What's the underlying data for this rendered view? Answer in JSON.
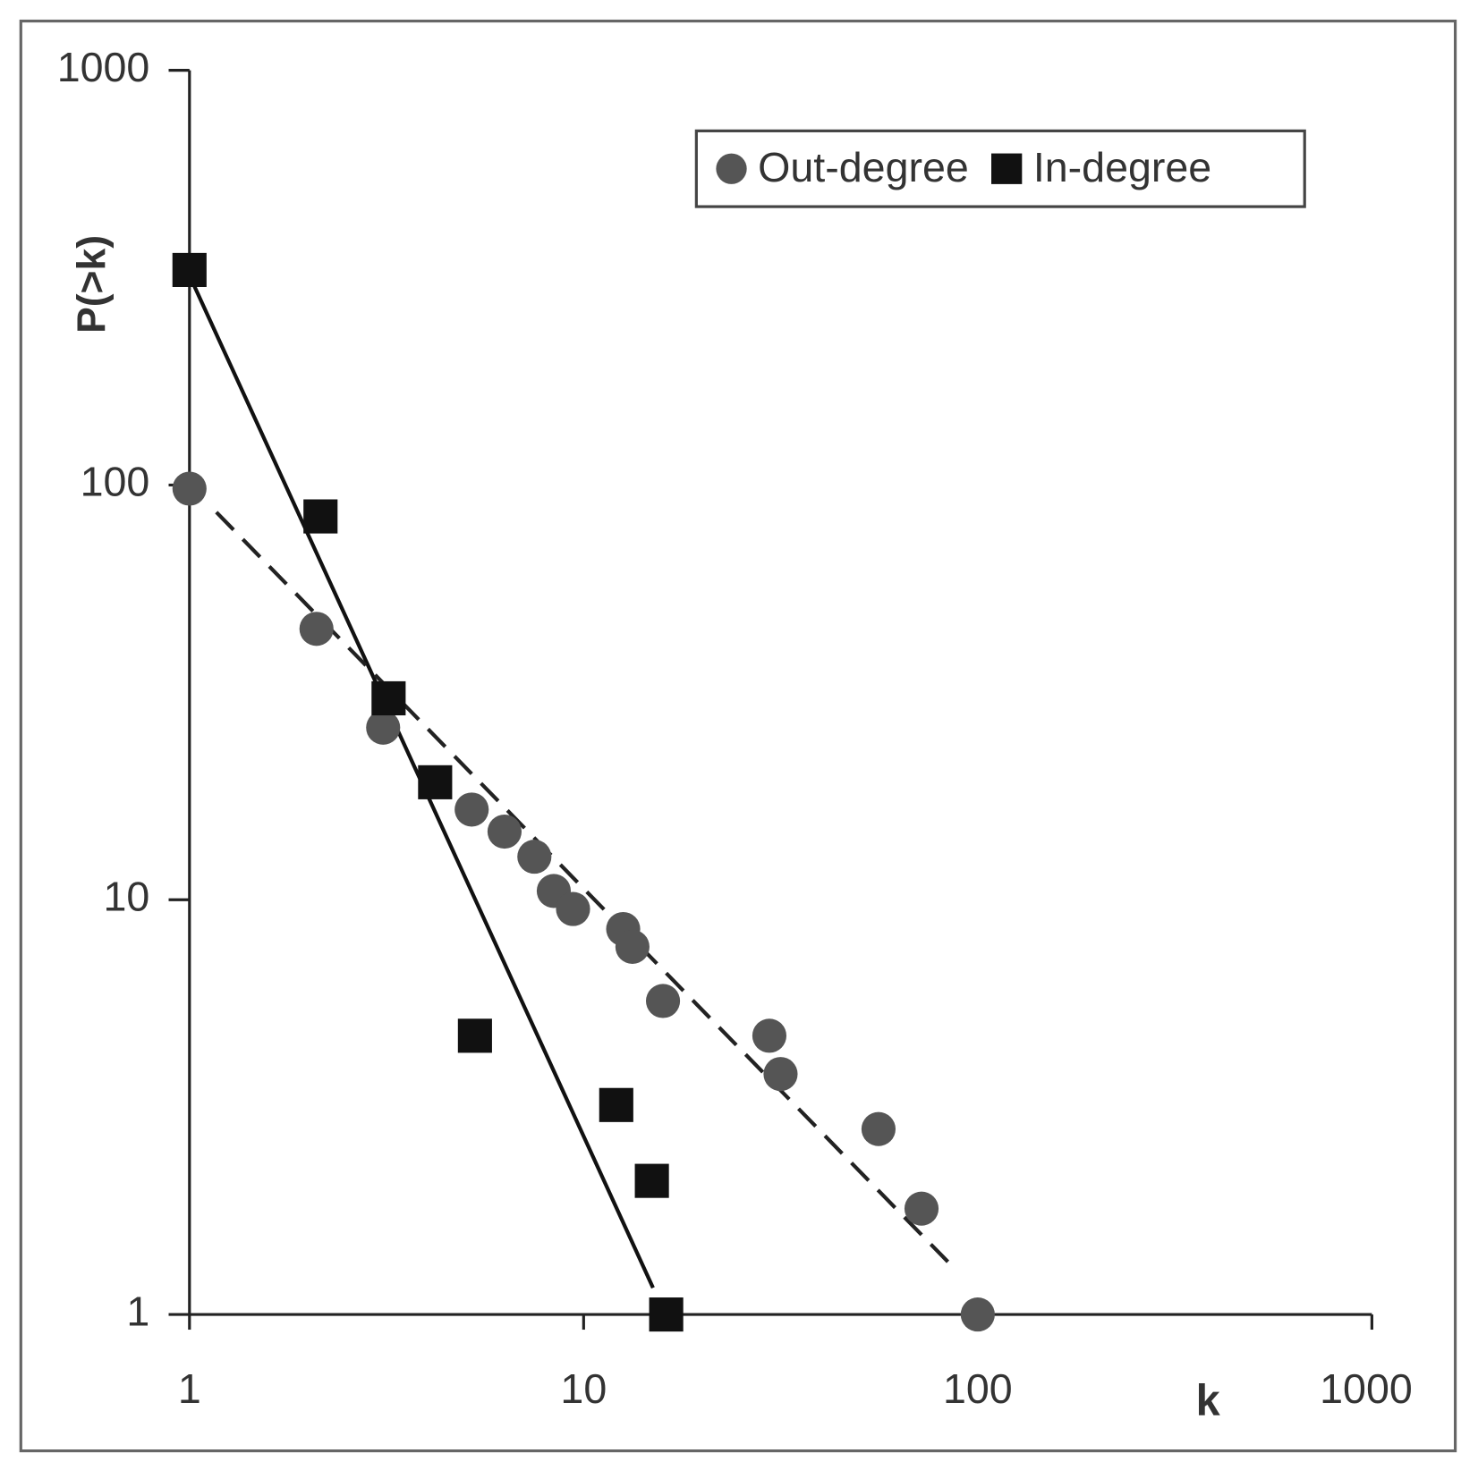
{
  "chart_data": {
    "type": "scatter",
    "x_label": "k",
    "y_label": "P(>k)",
    "xscale": "log",
    "yscale": "log",
    "xlim": [
      1,
      1000
    ],
    "ylim": [
      1,
      1000
    ],
    "xticks": [
      1,
      10,
      100,
      1000
    ],
    "yticks": [
      1,
      10,
      100,
      1000
    ],
    "grid": false,
    "legend": "upper right",
    "series": [
      {
        "name": "Out-degree",
        "color": "#555555",
        "marker": "circle",
        "x": [
          1,
          2.1,
          3.1,
          5.2,
          6.3,
          7.5,
          8.4,
          9.4,
          12.6,
          13.3,
          15.9,
          29.6,
          31.6,
          56,
          72,
          100
        ],
        "values": [
          98,
          45,
          26,
          16.5,
          14.6,
          12.7,
          10.5,
          9.5,
          8.5,
          7.7,
          5.7,
          4.7,
          3.8,
          2.8,
          1.8,
          1
        ]
      },
      {
        "name": "In-degree",
        "color": "#111111",
        "marker": "square",
        "x": [
          1,
          2.15,
          3.2,
          4.2,
          5.3,
          12.1,
          14.9,
          16.2
        ],
        "values": [
          330,
          84,
          30.6,
          19.2,
          4.7,
          3.2,
          2.1,
          1
        ]
      }
    ],
    "trendlines": [
      {
        "color": "#111111",
        "dashed": false,
        "x": [
          1,
          15
        ],
        "values": [
          320,
          1.16
        ]
      },
      {
        "color": "#222222",
        "dashed": true,
        "x": [
          1.17,
          84
        ],
        "values": [
          86,
          1.34
        ]
      }
    ]
  }
}
